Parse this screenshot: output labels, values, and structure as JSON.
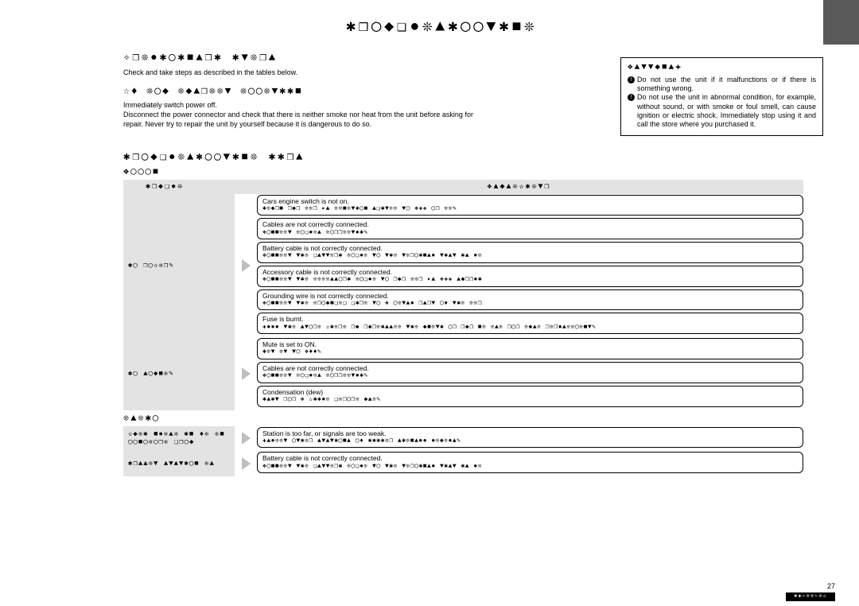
{
  "black_tab": true,
  "caution": {
    "heading": "❖▲▼▼◆■▲✚",
    "items": [
      "Do not use the unit if it malfunctions or if there is something wrong.",
      "Do not use the unit in abnormal condition, for example, without sound, or with smoke or foul smell, can cause ignition or electric shock. Immediately stop using it and call the store where you purchased it."
    ]
  },
  "title_glyphs": "✱❒◯◆❏●❊▲✱◯◯▼✱■❊",
  "prelim": {
    "heading": "✧❒❊●✱◯✱■▲❒✱ ✱▼❊❒▲",
    "text": "Check and take steps as described in the tables below."
  },
  "suspect": {
    "heading": "☆♦ ❊◯◆ ❊◆▲❒❊❊▼ ❊◯◯❊▼✱✱■",
    "text1": "Immediately switch power off.",
    "text2": "Disconnect the power connector and check that there is neither smoke nor heat from the unit before asking for repair. Never try to repair the unit by yourself because it is dangerous to do so."
  },
  "tips_heading": "✱❒◯◆❏●❊▲✱◯◯▼✱■❊ ✱✱❒▲",
  "sections": [
    {
      "label": "❖◯◯◯■",
      "th_trouble": "✱❒◆❏●❊",
      "th_cause": "❖▲◆▲❊✫✱❊▼❒",
      "rows": [
        {
          "trouble": "✱◯ ❒◯✫❊❒✎",
          "causes": [
            {
              "t": "Cars engine switch is not on.",
              "f": "✱❊◆❒■ ❒◆❒ ❊❊❒ ▸▲ ❊❊■❊▼✱◯■ ▲❏✱▼❊❊ ▼◯ ❖✚✚ ◯❒ ❊❊✎"
            },
            {
              "t": "Cables are not correctly connected.",
              "f": "❖◯■■❊❊▼ ❊◯❏●❊▲ ❊◯❒❒❊❊▼●✱✎"
            },
            {
              "t": "Battery cable is not correctly connected.",
              "f": "❖◯■■❊❊▼ ▼✱❊ ❏▲▼▼❊❒✱ ❊◯❏●❊ ▼◯ ▼✱❊ ▼❊❒◯✱■▲● ▼✱▲▼ ✱▲ ●❊"
            },
            {
              "t": "Accessory cable is not correctly connected.",
              "f": "❖◯■■❊❊▼ ▼✱❊ ❊❊❊❊▲▲◯❒✱ ❊◯❏●❊ ▼◯ ❒◆❒ ❊❊❒ ▸▲ ❖✚✚ ▲◆❒❒●✱"
            },
            {
              "t": "Grounding wire is not correctly connected.",
              "f": "❖◯■■❊❊▼ ▼✱❊ ❊❒◯◆■❏❊❏ ❏✱❒❊ ▼◯ ❖ ◯❊▼▲● ❒▲❒▼ ◯♦ ▼✱❊ ❊❊❒"
            },
            {
              "t": "Fuse is burnt.",
              "f": "✚●●● ▼✱❊ ▲▼◯❒❊ ✫✱❊❒❊ ❒◆ ❒◆❒❊✱▲▲❊❊ ▼✱❊ ◆■❊▼✱ ◯❒ ❒◆❒ ■❊\n❊▲❊ ❒◯❒ ❊◆▲❊ ❒❊❒●▲❊❊◯❊■▼✎"
            }
          ]
        },
        {
          "trouble": "✱◯ ▲◯◆■❊✎",
          "causes": [
            {
              "t": "Mute is set to ON.",
              "f": "✱❊▼ ❊▼ ▼◯ ❖♦♦✎"
            },
            {
              "t": "Cables are not correctly connected.",
              "f": "❖◯■■❊❊▼ ❊◯❏●❊▲ ❊◯❒❒❊❊▼●✱✎"
            },
            {
              "t": "Condensation (dew)",
              "f": "✱▲✱▼ ❒◯❒ ❖ ✫✱✱●❊ ❏❊❒◯❒❊ ◆▲❊✎"
            }
          ]
        }
      ]
    },
    {
      "label": "❊▲❊✱◯",
      "rows": [
        {
          "trouble": "✫◆❊✱ ■●❊▲❊ ✱■ ♦❊\n❊■ ◯◯■◯❊◯❒❊ ❏❒◯◆",
          "causes": [
            {
              "t": "Station is too far, or signals are too weak.",
              "f": "✚▲●❊❊▼ ◯▼✱❊❒ ▲▼▲▼✱◯■▲ ◯♦ ✱✱✱✱❊❒ ▲✱❊■▲●● ●❊◆❊●▲✎"
            }
          ]
        },
        {
          "trouble": "✱❒▲▲❊▼ ▲▼▲▼✱◯■ ❊▲",
          "causes": [
            {
              "t": "Battery cable is not correctly connected.",
              "f": "❖◯■■❊❊▼ ▼✱❊ ❏▲▼▼❊❒✱ ❊◯❏●❊ ▼◯ ▼✱❊ ▼❊❒◯✱■▲● ▼✱▲▼ ✱▲ ●❊"
            }
          ]
        }
      ]
    }
  ],
  "page_number": "27",
  "footer_code": "❖✚✁❊❊✁❊✫"
}
